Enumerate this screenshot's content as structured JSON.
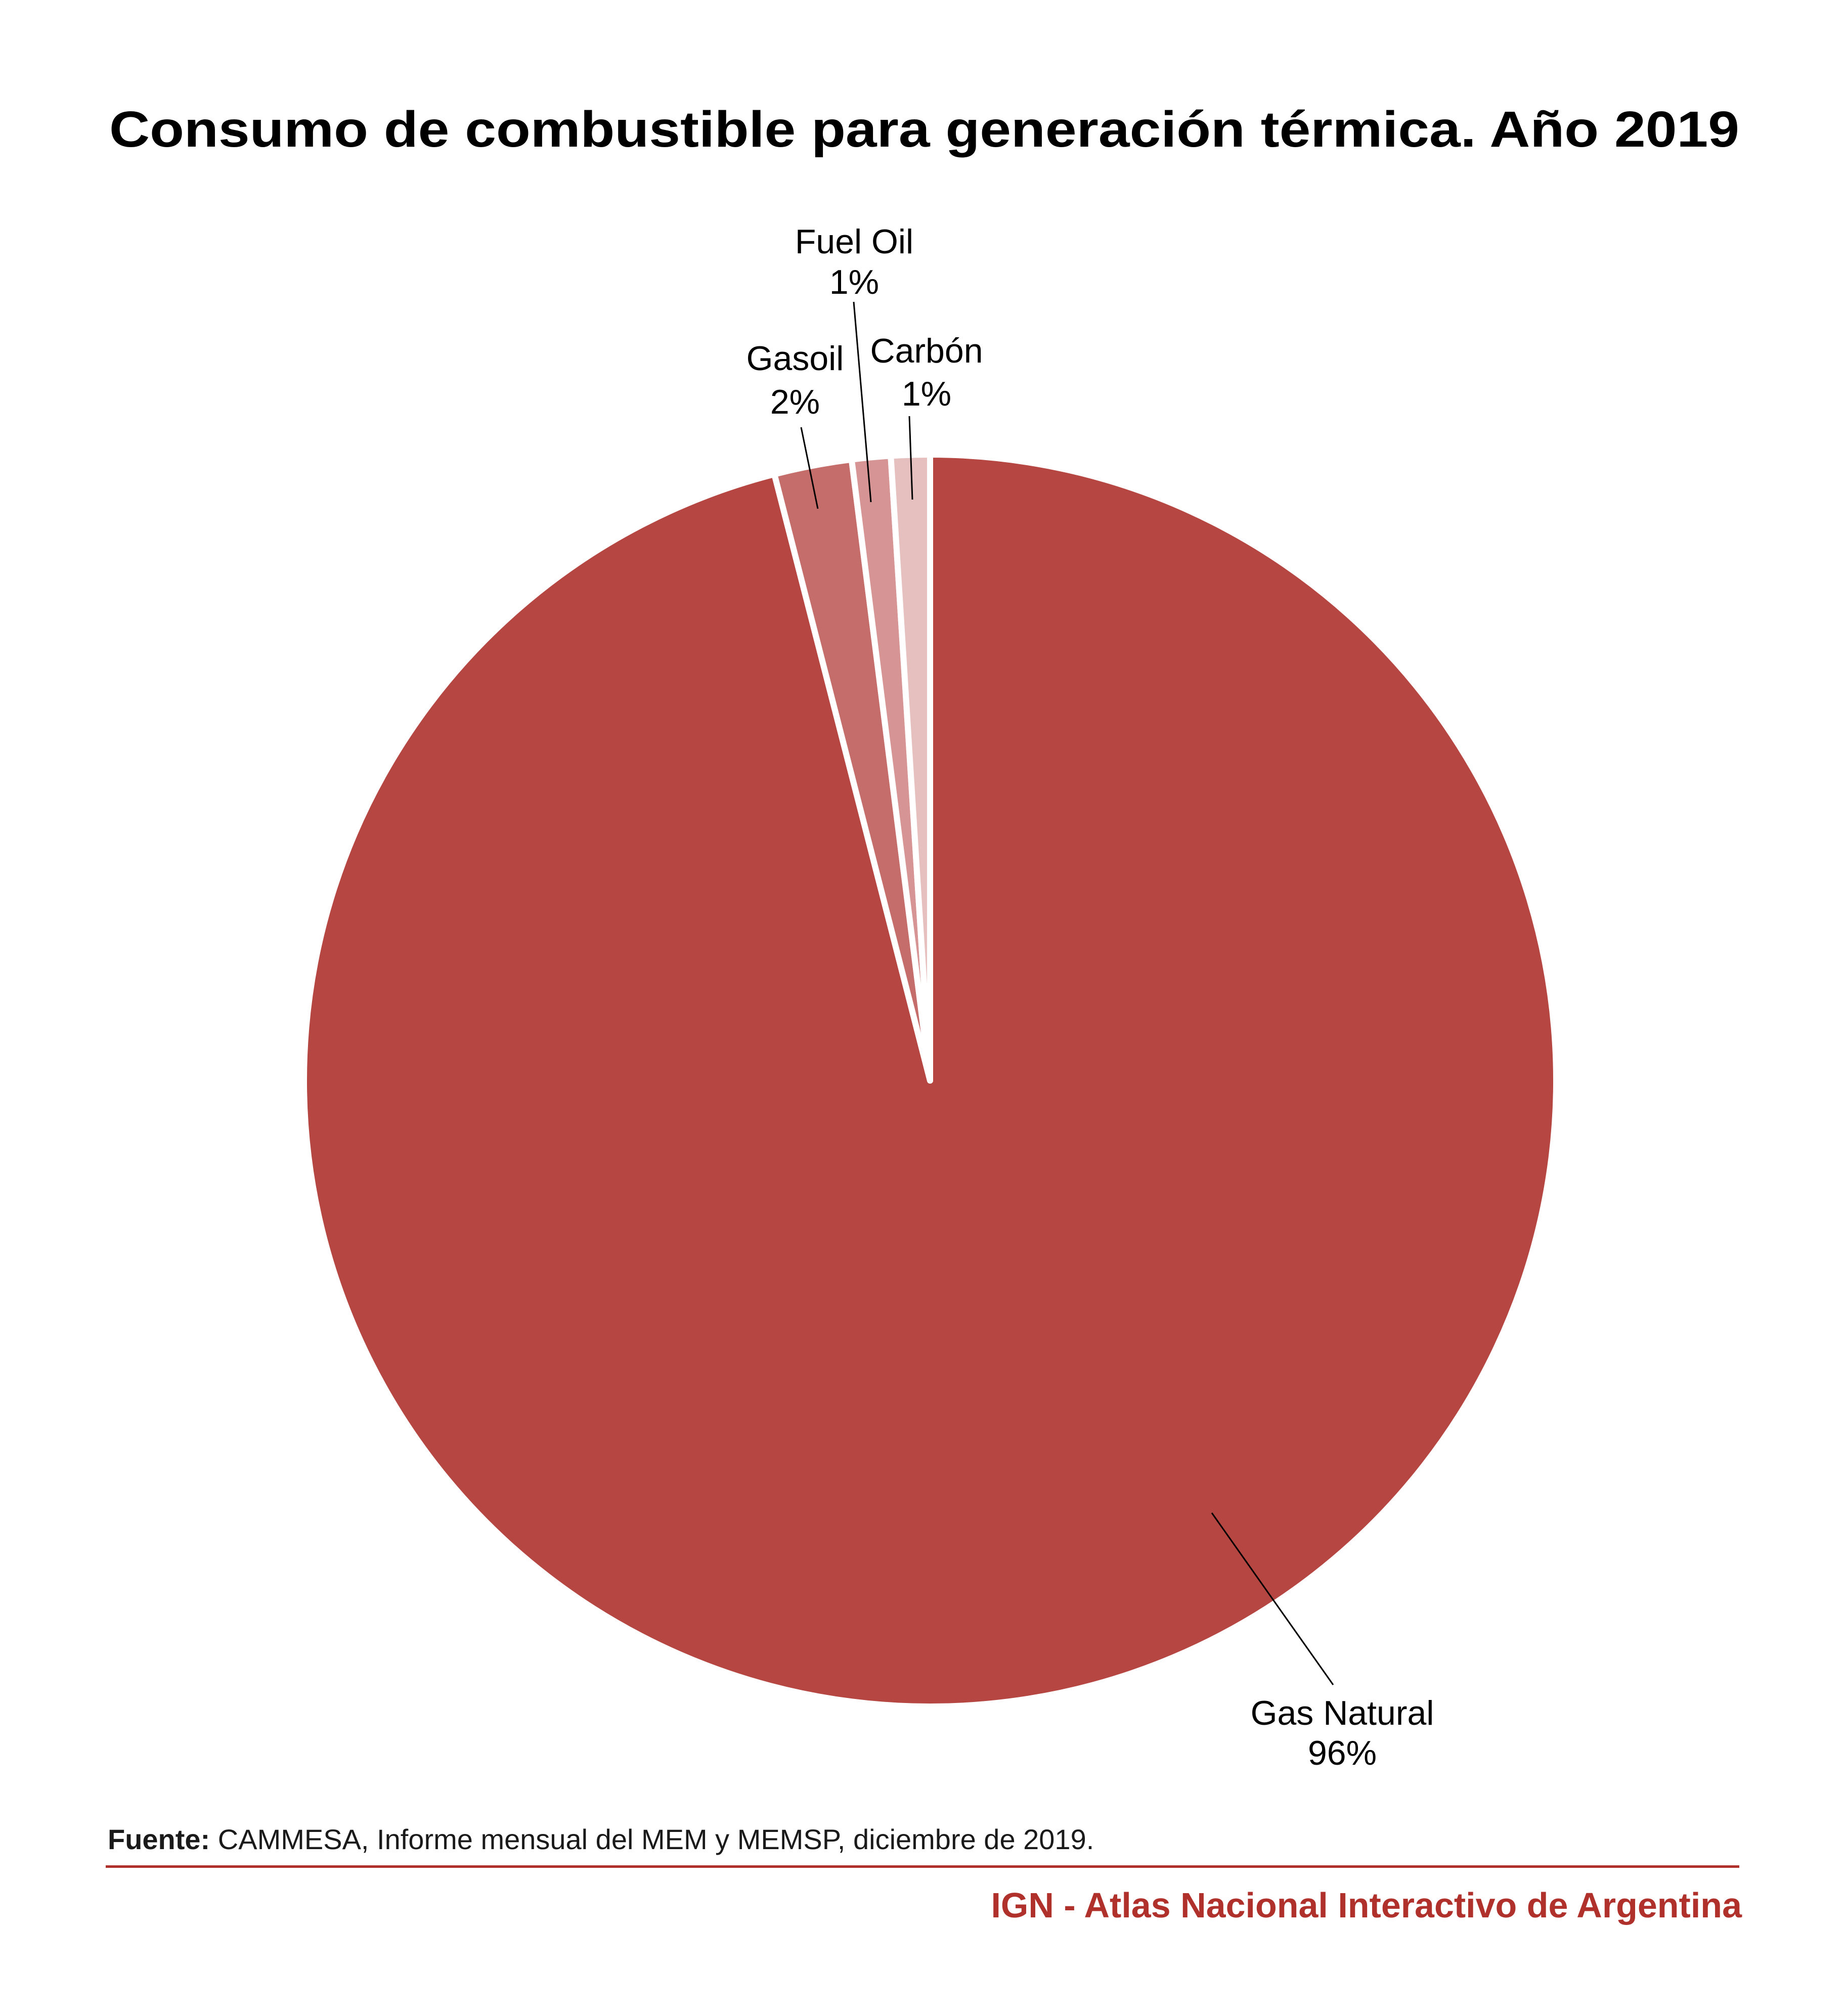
{
  "chart_data": {
    "type": "pie",
    "title": "Consumo de combustible para generación térmica. Año 2019",
    "start": "top",
    "direction": "clockwise",
    "slices": [
      {
        "name": "Gas Natural",
        "value": 96,
        "label_value": "96%",
        "color": "#B54642",
        "label_position": "bottom-right"
      },
      {
        "name": "Gasoil",
        "value": 2,
        "label_value": "2%",
        "color": "#C56D6A",
        "label_position": "top-left"
      },
      {
        "name": "Fuel Oil",
        "value": 1,
        "label_value": "1%",
        "color": "#D69594",
        "label_position": "top"
      },
      {
        "name": "Carbón",
        "value": 1,
        "label_value": "1%",
        "color": "#E6C0BF",
        "label_position": "top-right"
      }
    ],
    "legend": "none"
  },
  "footer": {
    "source_label": "Fuente:",
    "source_text": " CAMMESA, Informe mensual del MEM y MEMSP, diciembre de 2019.",
    "credit": "IGN - Atlas Nacional Interactivo de Argentina",
    "accent_color": "#B0312C"
  }
}
